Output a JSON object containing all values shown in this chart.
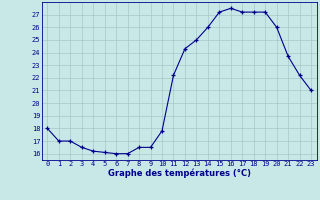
{
  "hours": [
    0,
    1,
    2,
    3,
    4,
    5,
    6,
    7,
    8,
    9,
    10,
    11,
    12,
    13,
    14,
    15,
    16,
    17,
    18,
    19,
    20,
    21,
    22,
    23
  ],
  "temps": [
    18.0,
    17.0,
    17.0,
    16.5,
    16.2,
    16.1,
    16.0,
    16.0,
    16.5,
    16.5,
    17.8,
    22.2,
    24.3,
    25.0,
    26.0,
    27.2,
    27.5,
    27.2,
    27.2,
    27.2,
    26.0,
    23.7,
    22.2,
    21.0
  ],
  "line_color": "#00008B",
  "marker": "+",
  "bg_color": "#c8e8e8",
  "grid_color": "#a8c8c8",
  "axis_color": "#00008B",
  "xlabel": "Graphe des températures (°C)",
  "ylim": [
    15.5,
    28.0
  ],
  "yticks": [
    16,
    17,
    18,
    19,
    20,
    21,
    22,
    23,
    24,
    25,
    26,
    27
  ],
  "xlim": [
    -0.5,
    23.5
  ],
  "xlabel_fontsize": 6.0,
  "xlabel_fontweight": "bold",
  "tick_fontsize": 5.0
}
